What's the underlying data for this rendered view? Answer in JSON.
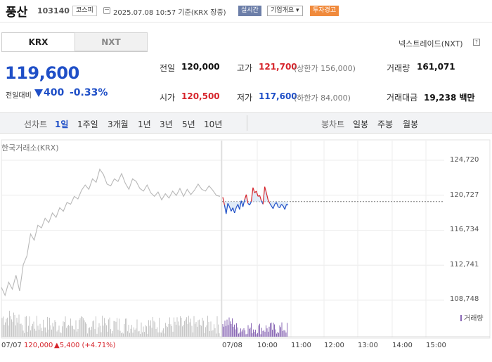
{
  "header": {
    "name": "풍산",
    "code": "103140",
    "market": "코스피",
    "timestamp": "2025.07.08 10:57 기준(KRX 장중)",
    "tags": [
      "실시간",
      "기업개요",
      "투자경고"
    ]
  },
  "exchange_tabs": [
    "KRX",
    "NXT"
  ],
  "nextrade_link": "넥스트레이드(NXT)",
  "quote": {
    "price": "119,600",
    "change_label": "전일대비",
    "change": "400",
    "change_pct": "-0.33%"
  },
  "stats": {
    "prev_close": {
      "label": "전일",
      "value": "120,000"
    },
    "open": {
      "label": "시가",
      "value": "120,500"
    },
    "high": {
      "label": "고가",
      "value": "121,700",
      "note": "(상한가 156,000)"
    },
    "low": {
      "label": "저가",
      "value": "117,600",
      "note": "(하한가 84,000)"
    },
    "volume": {
      "label": "거래량",
      "value": "161,071"
    },
    "amount": {
      "label": "거래대금",
      "value": "19,238 백만"
    }
  },
  "period_bar": {
    "line_label": "선차트",
    "line_periods": [
      "1일",
      "1주일",
      "3개월",
      "1년",
      "3년",
      "5년",
      "10년"
    ],
    "selected": "1일",
    "candle_label": "봉차트",
    "candle_periods": [
      "일봉",
      "주봉",
      "월봉"
    ]
  },
  "chart_data": {
    "type": "line",
    "source_label": "한국거래소(KRX)",
    "y_ticks": [
      "124,720",
      "120,727",
      "116,734",
      "112,741",
      "108,748"
    ],
    "ylim": [
      108748,
      124720
    ],
    "x_ticks": [
      "07/08",
      "10:00",
      "11:00",
      "12:00",
      "13:00",
      "14:00",
      "15:00"
    ],
    "prev_day_label": "07/07",
    "prev_day_close": "120,000",
    "prev_day_change": "5,400 (+4.71%)",
    "reference_price": 120000,
    "volume_label": "거래량",
    "series": [
      {
        "values": [
          110200,
          109300,
          110800,
          110000,
          111600,
          109800,
          112800,
          113800,
          116300,
          115600,
          117300,
          117000,
          118100,
          117600,
          118700,
          118200,
          119300,
          118900,
          119900,
          119700,
          120600,
          120300,
          121300,
          121900,
          121400,
          122600,
          122200,
          123700,
          123100,
          122000,
          121800,
          122600,
          122300,
          123200,
          122100,
          121400,
          122600,
          122300,
          121500,
          121200,
          121900,
          121000,
          120600,
          121100,
          120200,
          120900,
          120400,
          121200,
          120700,
          121500,
          120600,
          121400,
          120800,
          121300,
          122000,
          121400,
          121200,
          121800,
          121300,
          120700,
          120600
        ]
      },
      {
        "values": [
          120500,
          119600,
          118600,
          119800,
          119400,
          118900,
          119300,
          118700,
          119300,
          119700,
          119100,
          120100,
          119400,
          120200,
          120800,
          119800,
          119600,
          120000,
          121600,
          121000,
          121200,
          120600,
          120700,
          120100,
          119700,
          121700,
          121000,
          120200,
          119800,
          119500,
          119200,
          119700,
          119900,
          119400,
          119300,
          119700,
          119500,
          119100,
          119700,
          119600
        ]
      }
    ]
  },
  "colors": {
    "up": "#d6242b",
    "down": "#1f4fc7",
    "prev_line": "#b8b8b8",
    "volume": "#8a68b5"
  }
}
